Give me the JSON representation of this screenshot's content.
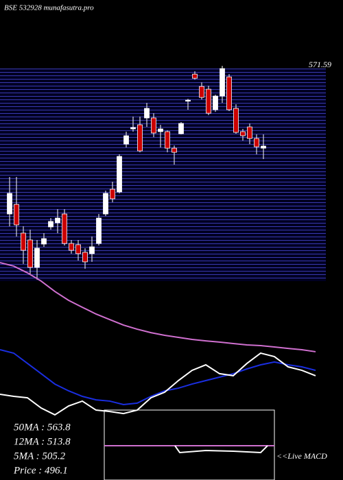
{
  "chart_data": [
    {
      "type": "candlestick",
      "title": "BSE 532928 munafasutra.pro",
      "annotation": "571.59",
      "up_color": "#ffffff",
      "down_color": "#cc0000",
      "ylim": [
        367.8,
        569.7
      ],
      "series": [
        {
          "name": "Price",
          "open": [
            431.6,
            440.7,
            413.4,
            406.9,
            380.9,
            403.0,
            419.3,
            423.2,
            431.6,
            403.6,
            402.4,
            395.2,
            393.9,
            403.6,
            431.6,
            455.1,
            452.5,
            498.0,
            512.4,
            516.3,
            522.8,
            522.8,
            509.8,
            509.8,
            494.1,
            507.8,
            539.0,
            564.4,
            552.7,
            550.1,
            530.6,
            543.6,
            561.8,
            531.9,
            509.8,
            514.3,
            503.3,
            494.1
          ],
          "high": [
            466.8,
            466.8,
            419.9,
            416.7,
            406.9,
            413.4,
            427.7,
            436.2,
            436.2,
            406.9,
            406.9,
            399.1,
            410.2,
            431.6,
            453.8,
            462.2,
            488.3,
            509.8,
            524.1,
            524.1,
            537.1,
            527.3,
            516.3,
            511.0,
            496.7,
            518.9,
            541.0,
            567.1,
            556.6,
            553.4,
            544.9,
            572.3,
            564.4,
            535.8,
            512.4,
            517.6,
            507.2,
            507.2
          ],
          "low": [
            419.9,
            410.2,
            384.2,
            374.4,
            369.2,
            400.4,
            416.7,
            413.4,
            401.7,
            393.9,
            387.4,
            379.6,
            386.1,
            401.7,
            429.6,
            442.7,
            451.2,
            494.8,
            509.8,
            490.2,
            514.3,
            504.6,
            494.8,
            490.2,
            478.5,
            507.2,
            530.6,
            559.2,
            540.4,
            525.4,
            528.6,
            537.1,
            529.3,
            507.8,
            501.3,
            498.0,
            488.3,
            483.7
          ],
          "close": [
            451.2,
            421.2,
            397.1,
            380.9,
            399.1,
            408.2,
            424.5,
            427.7,
            403.6,
            397.1,
            393.9,
            386.1,
            400.4,
            427.7,
            451.2,
            446.0,
            486.3,
            505.9,
            513.7,
            491.5,
            531.9,
            508.5,
            512.4,
            494.1,
            490.2,
            517.6,
            539.7,
            560.5,
            542.3,
            527.3,
            543.6,
            569.7,
            530.6,
            509.1,
            505.9,
            503.3,
            495.4,
            496.1
          ]
        }
      ]
    },
    {
      "type": "line",
      "ylim": [
        0,
        100
      ],
      "series": [
        {
          "name": "50MA : 563.8",
          "color": "#d070d0",
          "values": [
            98.7,
            96.5,
            92.2,
            87.0,
            80.4,
            74.8,
            70.4,
            66.1,
            62.6,
            59.1,
            56.5,
            54.3,
            52.6,
            51.3,
            50.0,
            49.1,
            48.3,
            47.4,
            46.5,
            46.1,
            45.2,
            44.3,
            43.5,
            42.2
          ]
        },
        {
          "name": "12MA : 513.8",
          "color": "#1a2ee0",
          "values": [
            43.5,
            41.3,
            34.8,
            28.3,
            21.7,
            17.4,
            13.9,
            11.7,
            10.9,
            8.7,
            9.6,
            13.9,
            17.4,
            19.1,
            21.7,
            23.9,
            26.1,
            28.3,
            31.3,
            33.9,
            35.7,
            33.9,
            32.6,
            30.4
          ]
        },
        {
          "name": "Price   : 496.1",
          "color": "#ffffff",
          "values": [
            15.2,
            13.9,
            13.0,
            6.5,
            2.2,
            7.8,
            10.9,
            5.2,
            4.3,
            3.0,
            5.2,
            13.0,
            16.5,
            23.9,
            30.4,
            33.9,
            28.3,
            27.0,
            34.8,
            41.3,
            39.1,
            32.6,
            30.4,
            27.0
          ]
        }
      ],
      "legend_extra": "5MA : 505.2",
      "macd_label": "<<Live MACD"
    }
  ]
}
